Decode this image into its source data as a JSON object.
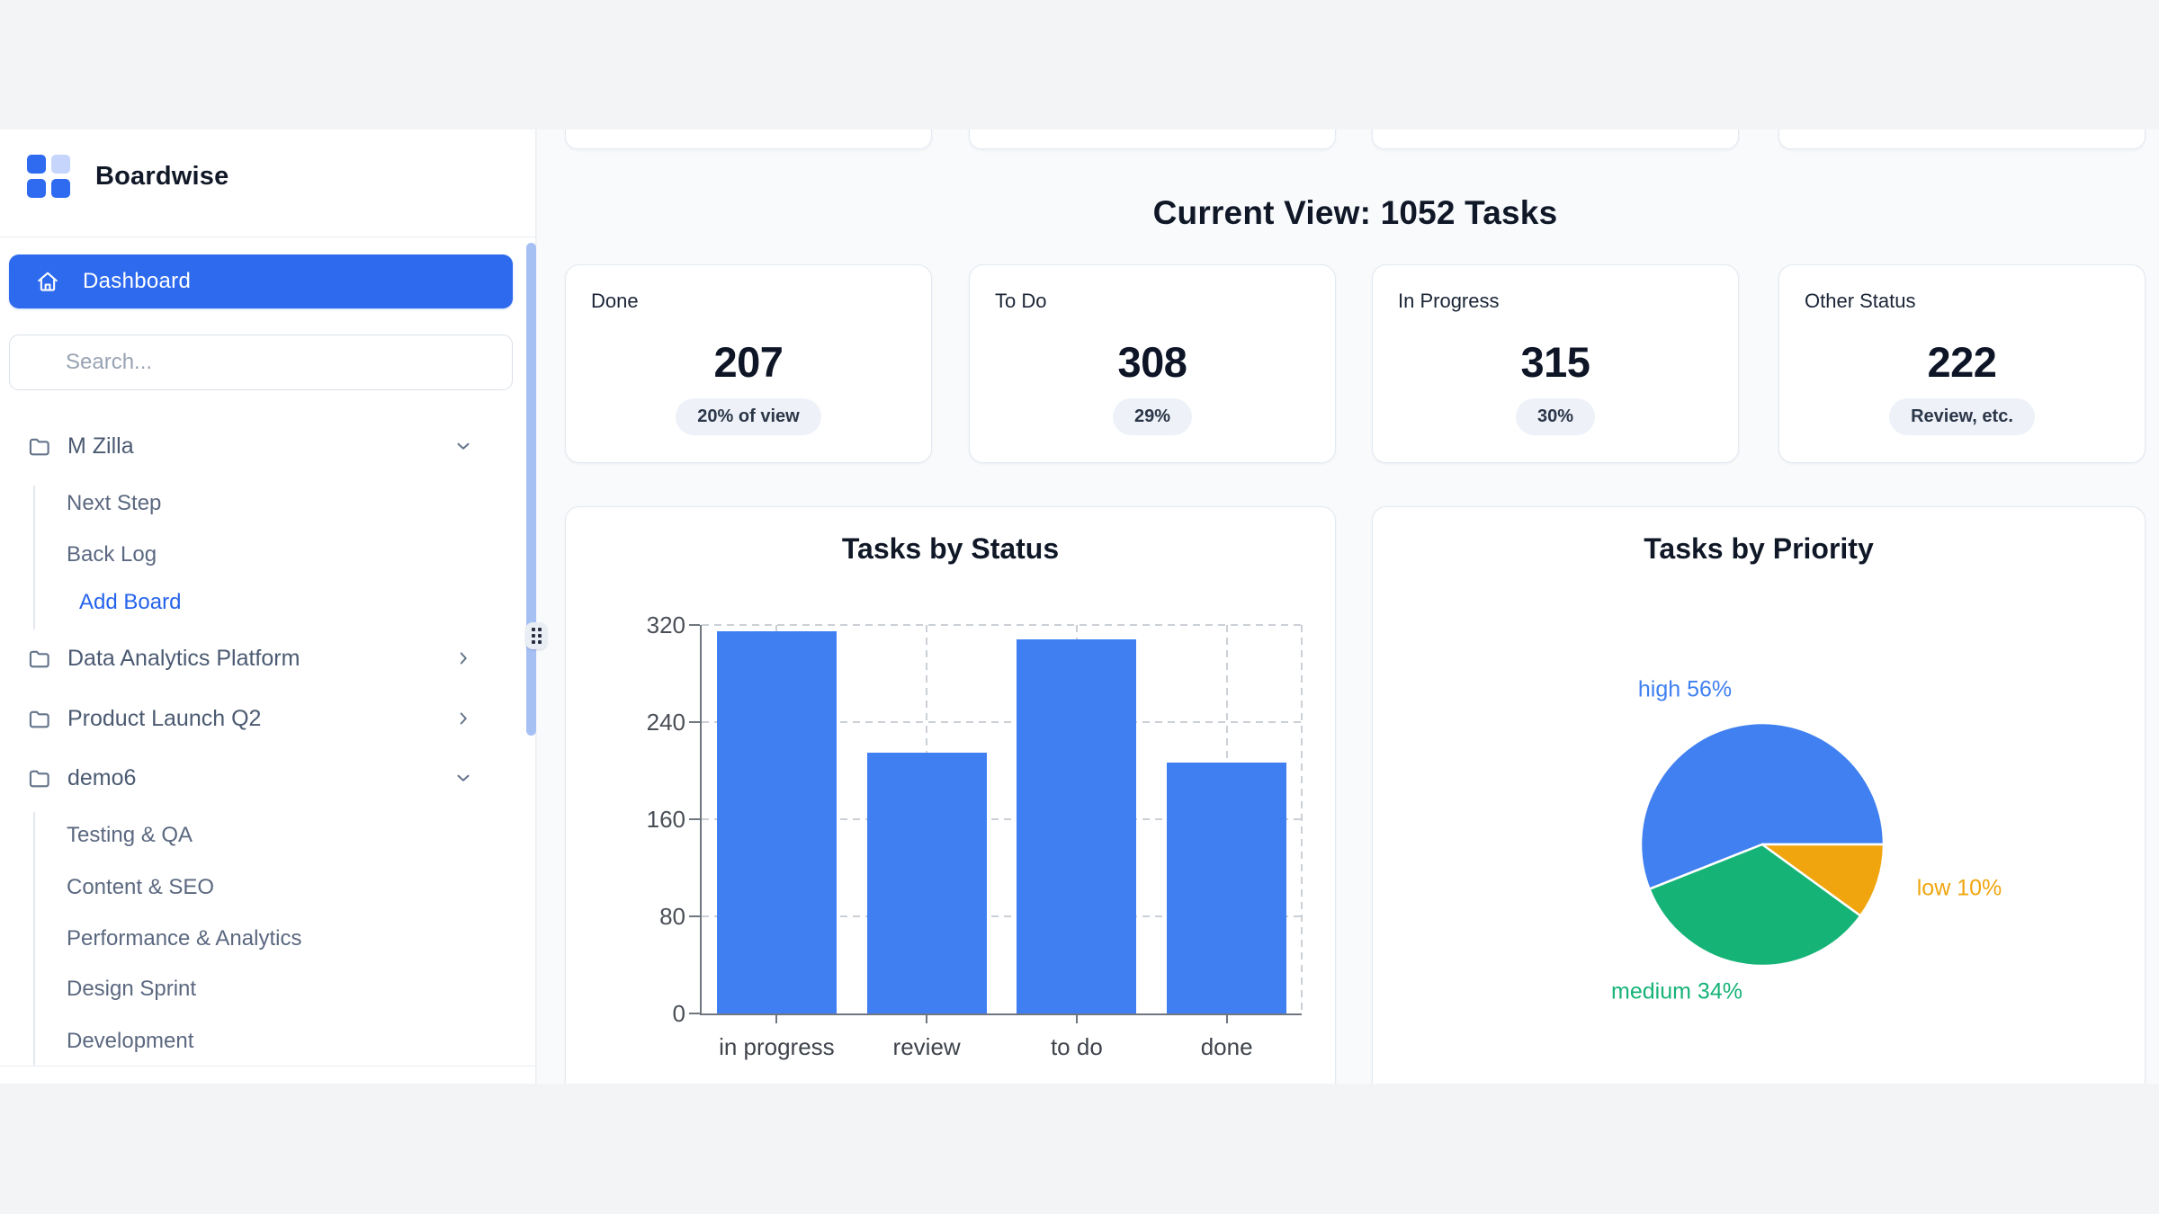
{
  "app": {
    "title": "Boardwise"
  },
  "sidebar": {
    "dashboard_label": "Dashboard",
    "search": {
      "placeholder": "Search..."
    },
    "boards": [
      {
        "label": "M Zilla",
        "expanded": true,
        "children": [
          {
            "label": "Next Step",
            "accent": false
          },
          {
            "label": "Back Log",
            "accent": false
          },
          {
            "label": "Add Board",
            "accent": true
          }
        ]
      },
      {
        "label": "Data Analytics Platform",
        "expanded": false,
        "children": []
      },
      {
        "label": "Product Launch Q2",
        "expanded": false,
        "children": []
      },
      {
        "label": "demo6",
        "expanded": true,
        "children": [
          {
            "label": "Testing & QA",
            "accent": false
          },
          {
            "label": "Content & SEO",
            "accent": false
          },
          {
            "label": "Performance & Analytics",
            "accent": false
          },
          {
            "label": "Design Sprint",
            "accent": false
          },
          {
            "label": "Development",
            "accent": false
          }
        ]
      }
    ]
  },
  "main": {
    "heading": "Current View: 1052 Tasks",
    "stats": [
      {
        "label": "Done",
        "value": "207",
        "badge": "20% of view"
      },
      {
        "label": "To Do",
        "value": "308",
        "badge": "29%"
      },
      {
        "label": "In Progress",
        "value": "315",
        "badge": "30%"
      },
      {
        "label": "Other Status",
        "value": "222",
        "badge": "Review, etc."
      }
    ]
  },
  "chart_data": [
    {
      "type": "bar",
      "title": "Tasks by Status",
      "categories": [
        "in progress",
        "review",
        "to do",
        "done"
      ],
      "values": [
        315,
        215,
        308,
        207
      ],
      "xlabel": "",
      "ylabel": "",
      "ylim": [
        0,
        320
      ],
      "yticks": [
        0,
        80,
        160,
        240,
        320
      ],
      "grid": true,
      "bar_color": "#3f7ff2"
    },
    {
      "type": "pie",
      "title": "Tasks by Priority",
      "labels": [
        "high",
        "medium",
        "low"
      ],
      "values": [
        56,
        34,
        10
      ],
      "display_labels": [
        "high 56%",
        "medium 34%",
        "low 10%"
      ],
      "colors": [
        "#4080f0",
        "#16b377",
        "#f0a50e"
      ],
      "start_angle_deg": 0,
      "direction": "counterclockwise",
      "legend": "none"
    }
  ],
  "colors": {
    "accent_blue": "#2e6aee",
    "link_blue": "#2563eb",
    "bar_blue": "#3f7ff2",
    "pie_blue": "#4080f0",
    "pie_green": "#16b377",
    "pie_orange": "#f0a50e",
    "page_bg": "#f3f4f6",
    "main_bg": "#f8fafc"
  }
}
